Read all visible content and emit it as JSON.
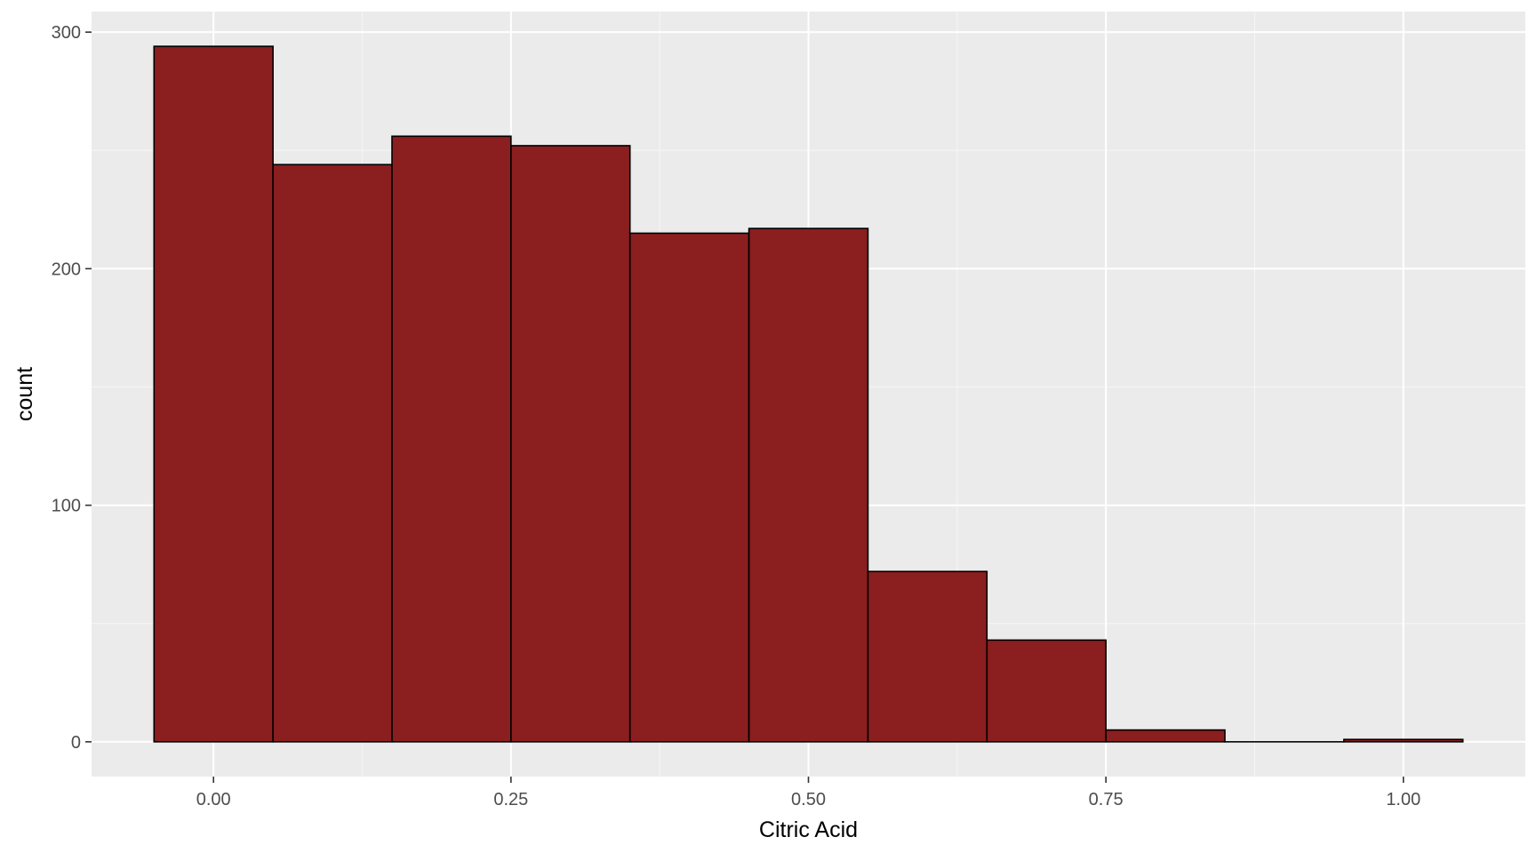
{
  "chart_data": {
    "type": "bar",
    "title": "",
    "xlabel": "Citric Acid",
    "ylabel": "count",
    "xlim": [
      -0.1025,
      1.1025
    ],
    "ylim": [
      -14.7,
      308.7
    ],
    "x_ticks": [
      {
        "value": 0.0,
        "label": "0.00"
      },
      {
        "value": 0.25,
        "label": "0.25"
      },
      {
        "value": 0.5,
        "label": "0.50"
      },
      {
        "value": 0.75,
        "label": "0.75"
      },
      {
        "value": 1.0,
        "label": "1.00"
      }
    ],
    "y_ticks": [
      {
        "value": 0,
        "label": "0"
      },
      {
        "value": 100,
        "label": "100"
      },
      {
        "value": 200,
        "label": "200"
      },
      {
        "value": 300,
        "label": "300"
      }
    ],
    "bins": [
      {
        "x0": -0.05,
        "x1": 0.05,
        "count": 294
      },
      {
        "x0": 0.05,
        "x1": 0.15,
        "count": 244
      },
      {
        "x0": 0.15,
        "x1": 0.25,
        "count": 256
      },
      {
        "x0": 0.25,
        "x1": 0.35,
        "count": 252
      },
      {
        "x0": 0.35,
        "x1": 0.45,
        "count": 215
      },
      {
        "x0": 0.45,
        "x1": 0.55,
        "count": 217
      },
      {
        "x0": 0.55,
        "x1": 0.65,
        "count": 72
      },
      {
        "x0": 0.65,
        "x1": 0.75,
        "count": 43
      },
      {
        "x0": 0.75,
        "x1": 0.85,
        "count": 5
      },
      {
        "x0": 0.85,
        "x1": 0.95,
        "count": 0
      },
      {
        "x0": 0.95,
        "x1": 1.05,
        "count": 1
      }
    ],
    "grid": true,
    "legend": "none",
    "colors": {
      "bar_fill": "#8B1E1F",
      "bar_stroke": "#000000",
      "panel_background": "#EBEBEB",
      "grid_major": "#FFFFFF",
      "grid_minor": "#F5F5F5",
      "tick_text": "#4D4D4D",
      "axis_title_text": "#000000"
    }
  }
}
